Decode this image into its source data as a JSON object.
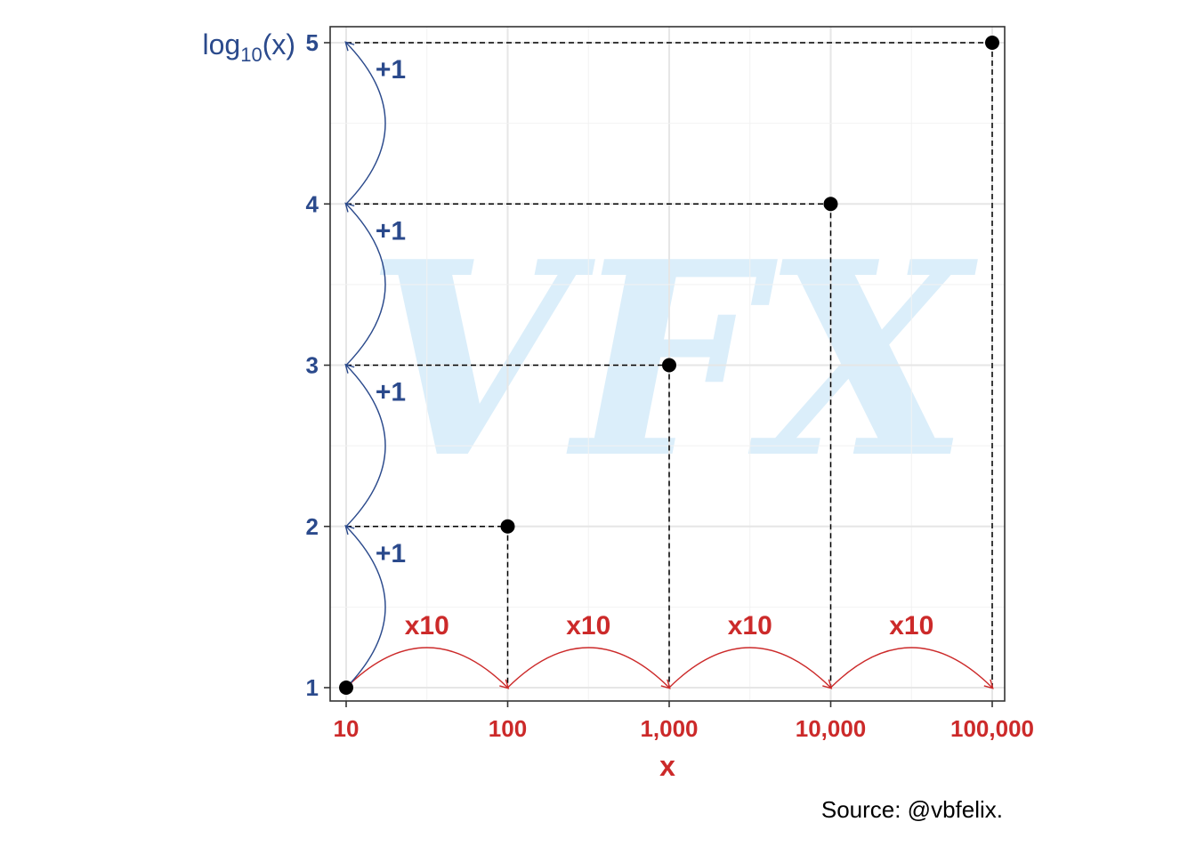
{
  "colors": {
    "x_axis": "#cc2a2a",
    "y_axis": "#2b4a8c",
    "points": "#000000",
    "grid": "#e6e6e6",
    "watermark": "#dbeefa"
  },
  "watermark_text": "VFX",
  "source_text": "Source: @vbfelix.",
  "chart_data": {
    "type": "scatter",
    "x": [
      10,
      100,
      1000,
      10000,
      100000
    ],
    "y": [
      1,
      2,
      3,
      4,
      5
    ],
    "x_scale": "log10",
    "xlim": [
      10,
      100000
    ],
    "ylim": [
      1,
      5
    ],
    "x_tick_labels": [
      "10",
      "100",
      "1,000",
      "10,000",
      "100,000"
    ],
    "y_tick_labels": [
      "1",
      "2",
      "3",
      "4",
      "5"
    ],
    "xlabel": "x",
    "ylabel_base": "log",
    "ylabel_sub": "10",
    "ylabel_rest": "(x)",
    "x_step_label": "x10",
    "y_step_label": "+1",
    "grid": true,
    "legend": "none"
  }
}
